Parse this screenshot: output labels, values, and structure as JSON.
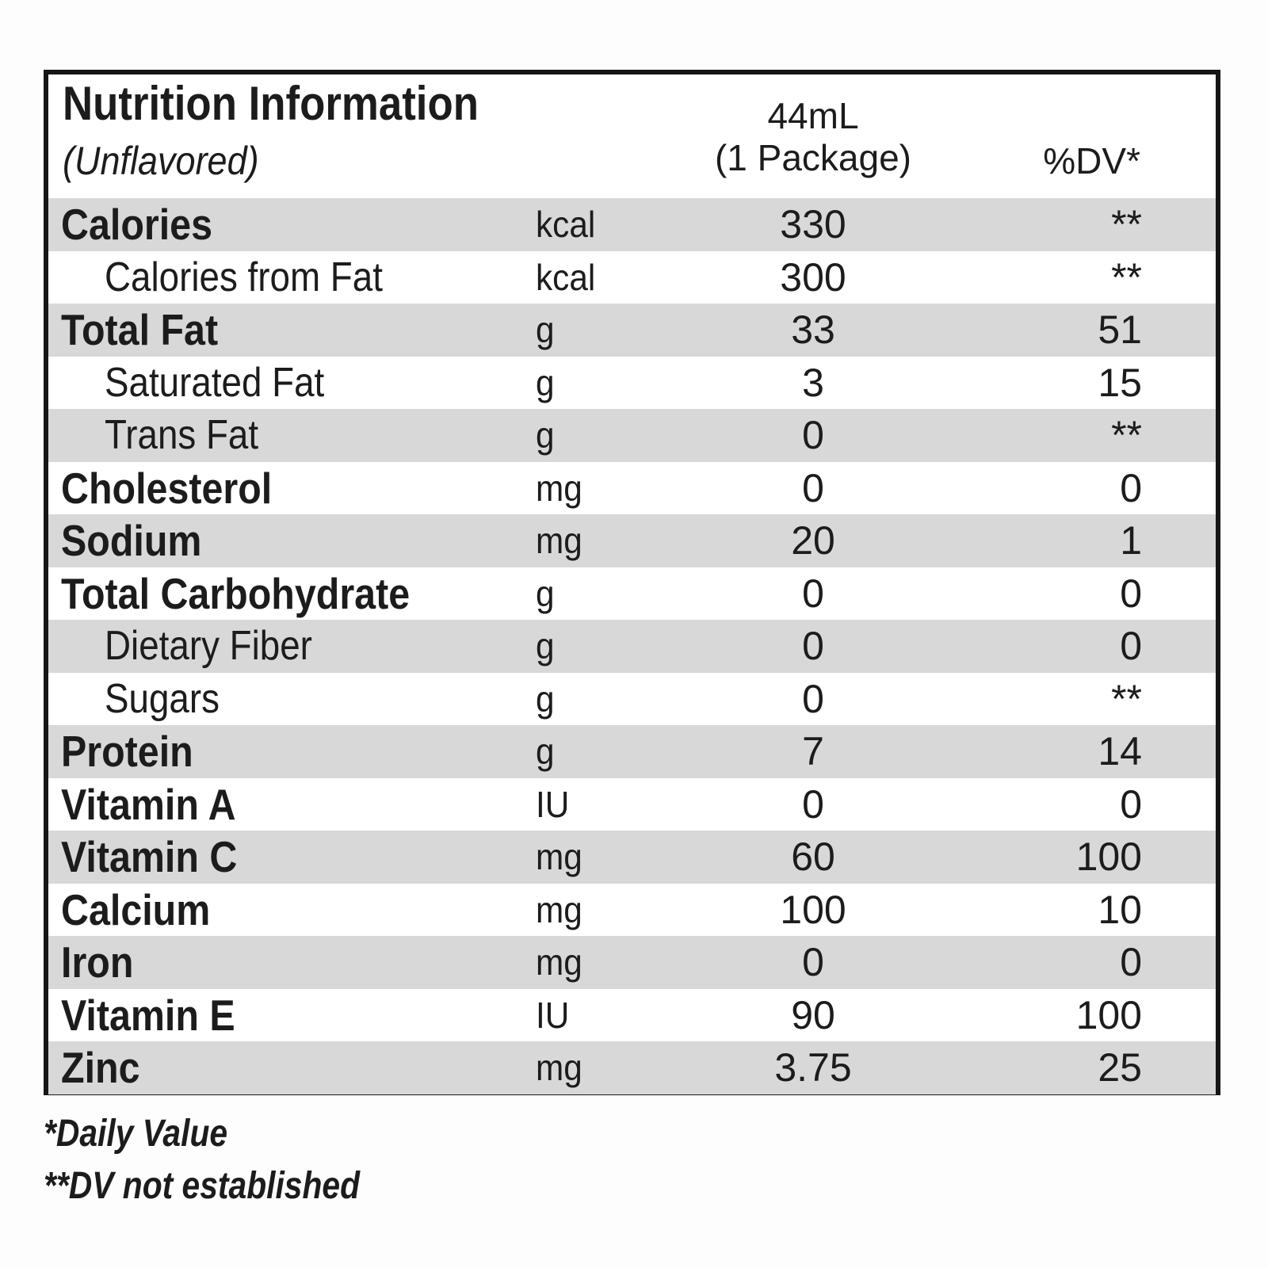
{
  "header": {
    "title": "Nutrition Information",
    "subtitle": "(Unflavored)",
    "amount_column_line1": "44mL",
    "amount_column_line2": "(1 Package)",
    "dv_column": "%DV*"
  },
  "rows": [
    {
      "label": "Calories",
      "unit": "kcal",
      "amount": "330",
      "dv": "**",
      "indent": false,
      "shaded": true
    },
    {
      "label": "Calories from Fat",
      "unit": "kcal",
      "amount": "300",
      "dv": "**",
      "indent": true,
      "shaded": false
    },
    {
      "label": "Total Fat",
      "unit": "g",
      "amount": "33",
      "dv": "51",
      "indent": false,
      "shaded": true
    },
    {
      "label": "Saturated Fat",
      "unit": "g",
      "amount": "3",
      "dv": "15",
      "indent": true,
      "shaded": false
    },
    {
      "label": "Trans Fat",
      "unit": "g",
      "amount": "0",
      "dv": "**",
      "indent": true,
      "shaded": true
    },
    {
      "label": "Cholesterol",
      "unit": "mg",
      "amount": "0",
      "dv": "0",
      "indent": false,
      "shaded": false
    },
    {
      "label": "Sodium",
      "unit": "mg",
      "amount": "20",
      "dv": "1",
      "indent": false,
      "shaded": true
    },
    {
      "label": "Total Carbohydrate",
      "unit": "g",
      "amount": "0",
      "dv": "0",
      "indent": false,
      "shaded": false
    },
    {
      "label": "Dietary Fiber",
      "unit": "g",
      "amount": "0",
      "dv": "0",
      "indent": true,
      "shaded": true
    },
    {
      "label": "Sugars",
      "unit": "g",
      "amount": "0",
      "dv": "**",
      "indent": true,
      "shaded": false
    },
    {
      "label": "Protein",
      "unit": "g",
      "amount": "7",
      "dv": "14",
      "indent": false,
      "shaded": true
    },
    {
      "label": "Vitamin A",
      "unit": "IU",
      "amount": "0",
      "dv": "0",
      "indent": false,
      "shaded": false
    },
    {
      "label": "Vitamin C",
      "unit": "mg",
      "amount": "60",
      "dv": "100",
      "indent": false,
      "shaded": true
    },
    {
      "label": "Calcium",
      "unit": "mg",
      "amount": "100",
      "dv": "10",
      "indent": false,
      "shaded": false
    },
    {
      "label": "Iron",
      "unit": "mg",
      "amount": "0",
      "dv": "0",
      "indent": false,
      "shaded": true
    },
    {
      "label": "Vitamin E",
      "unit": "IU",
      "amount": "90",
      "dv": "100",
      "indent": false,
      "shaded": false
    },
    {
      "label": "Zinc",
      "unit": "mg",
      "amount": "3.75",
      "dv": "25",
      "indent": false,
      "shaded": true
    }
  ],
  "footnotes": [
    "*Daily Value",
    "**DV not established"
  ],
  "colors": {
    "stripe": "#d8d8d8",
    "text": "#1c1c1c",
    "border": "#161616",
    "background": "#ffffff"
  }
}
